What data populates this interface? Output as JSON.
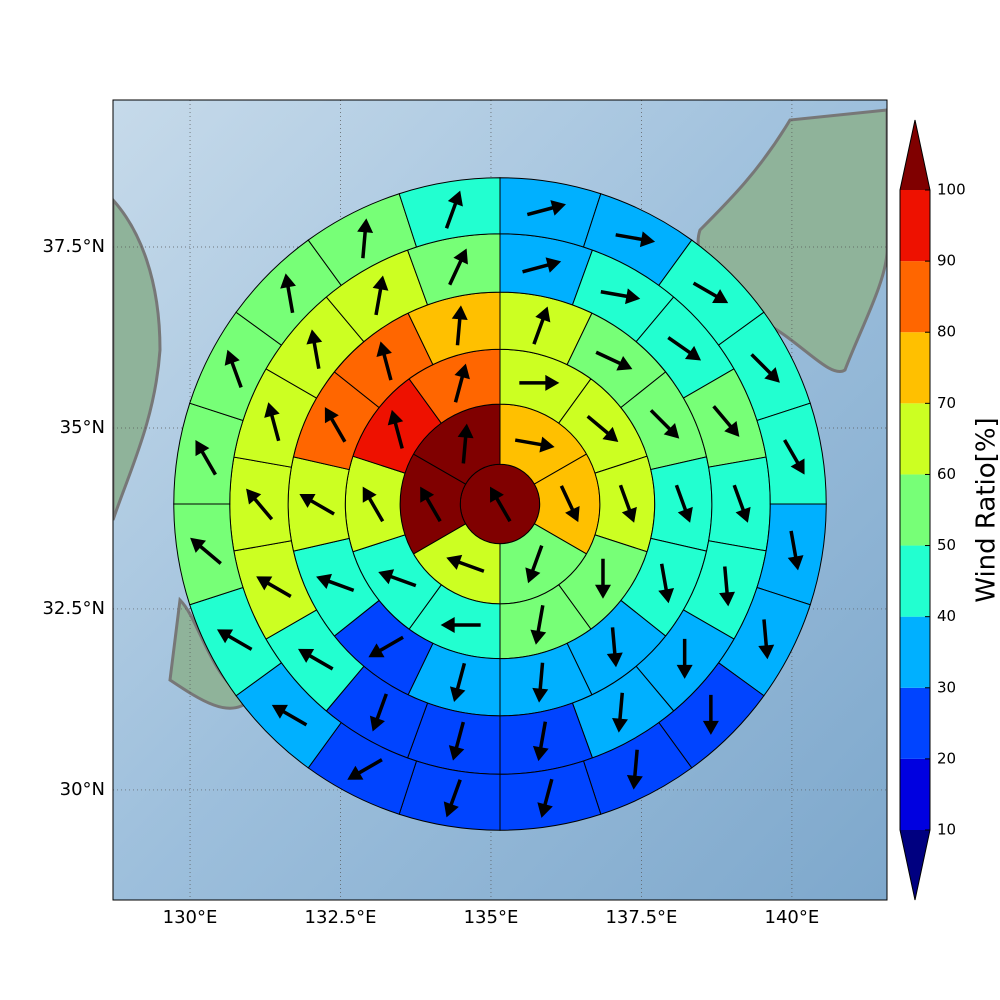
{
  "chart_data": {
    "type": "polar_sectors_map",
    "xlim": [
      128.72,
      141.58
    ],
    "ylim": [
      28.48,
      39.53
    ],
    "xticks": [
      {
        "value": 130,
        "label": "130°E"
      },
      {
        "value": 132.5,
        "label": "132.5°E"
      },
      {
        "value": 135,
        "label": "135°E"
      },
      {
        "value": 137.5,
        "label": "137.5°E"
      },
      {
        "value": 140,
        "label": "140°E"
      }
    ],
    "yticks": [
      {
        "value": 30,
        "label": "30°N"
      },
      {
        "value": 32.5,
        "label": "32.5°N"
      },
      {
        "value": 35,
        "label": "35°N"
      },
      {
        "value": 37.5,
        "label": "37.5°N"
      }
    ],
    "grid": true,
    "center": [
      135.15,
      33.95
    ],
    "radii": [
      0.66,
      1.66,
      2.57,
      3.52,
      4.49,
      5.42
    ],
    "rings": [
      {
        "values": [
          105
        ],
        "directions": [
          330
        ]
      },
      {
        "values": [
          75,
          75,
          55,
          65,
          105,
          105
        ],
        "directions": [
          100,
          155,
          200,
          290,
          330,
          5
        ]
      },
      {
        "values": [
          65,
          65,
          65,
          55,
          55,
          45,
          45,
          65,
          95,
          85
        ],
        "directions": [
          90,
          130,
          160,
          180,
          190,
          270,
          290,
          330,
          345,
          15
        ]
      },
      {
        "values": [
          65,
          55,
          55,
          45,
          45,
          35,
          35,
          35,
          25,
          45,
          65,
          85,
          85,
          75
        ],
        "directions": [
          20,
          115,
          135,
          160,
          170,
          175,
          185,
          195,
          240,
          290,
          300,
          330,
          345,
          5
        ]
      },
      {
        "values": [
          35,
          45,
          45,
          55,
          45,
          45,
          35,
          35,
          25,
          25,
          25,
          45,
          65,
          65,
          65,
          65,
          65,
          55
        ],
        "directions": [
          75,
          100,
          125,
          140,
          160,
          175,
          180,
          185,
          190,
          195,
          200,
          300,
          300,
          320,
          345,
          350,
          10,
          25
        ]
      },
      {
        "values": [
          35,
          35,
          45,
          45,
          45,
          35,
          35,
          25,
          25,
          25,
          25,
          25,
          35,
          45,
          55,
          55,
          55,
          55,
          55,
          45
        ],
        "directions": [
          75,
          100,
          120,
          135,
          150,
          170,
          175,
          180,
          185,
          195,
          200,
          240,
          300,
          300,
          310,
          330,
          340,
          350,
          5,
          20
        ]
      }
    ],
    "colorbar": {
      "label": "Wind Ratio[%]",
      "levels": [
        10,
        20,
        30,
        40,
        50,
        60,
        70,
        80,
        90,
        100
      ],
      "colors": [
        "#0000e0",
        "#0044ff",
        "#00b0ff",
        "#22ffd0",
        "#77ff77",
        "#ccff22",
        "#ffc000",
        "#ff6600",
        "#ee1100"
      ],
      "under": "#000080",
      "over": "#800000"
    }
  }
}
